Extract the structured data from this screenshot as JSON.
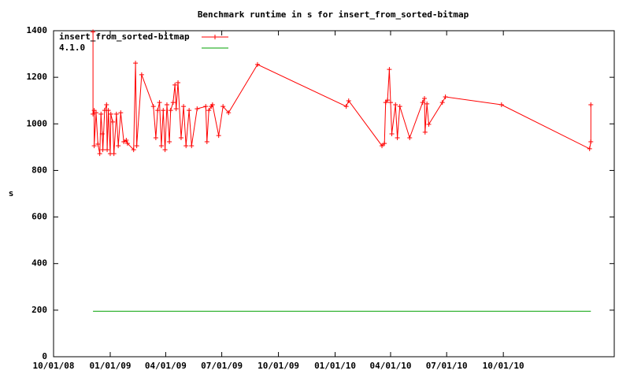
{
  "chart_data": {
    "type": "line",
    "title": "Benchmark runtime in s for insert_from_sorted-bitmap",
    "y_label": "s",
    "xlim": [
      "10/01/08",
      "03/30/11"
    ],
    "xticks": [
      "10/01/08",
      "01/01/09",
      "04/01/09",
      "07/01/09",
      "10/01/09",
      "01/01/10",
      "04/01/10",
      "07/01/10",
      "10/01/10"
    ],
    "ylim": [
      0,
      1400
    ],
    "yticks": [
      0,
      200,
      400,
      600,
      800,
      1000,
      1200,
      1400
    ],
    "legend": "top-left",
    "series": [
      {
        "name": "insert_from_sorted-bitmap",
        "color": "#ff0000",
        "marker": "plus",
        "x": [
          "12/04/08",
          "12/04/08",
          "12/06/08",
          "12/06/08",
          "12/09/08",
          "12/12/08",
          "12/15/08",
          "12/17/08",
          "12/19/08",
          "12/20/08",
          "12/23/08",
          "12/26/08",
          "12/27/08",
          "12/29/08",
          "01/01/09",
          "01/02/09",
          "01/05/09",
          "01/07/09",
          "01/11/09",
          "01/14/09",
          "01/18/09",
          "01/23/09",
          "01/27/09",
          "01/29/09",
          "02/08/09",
          "02/11/09",
          "02/13/09",
          "02/21/09",
          "03/12/09",
          "03/16/09",
          "03/19/09",
          "03/22/09",
          "03/25/09",
          "03/28/09",
          "03/31/09",
          "04/03/09",
          "04/07/09",
          "04/09/09",
          "04/13/09",
          "04/16/09",
          "04/18/09",
          "04/21/09",
          "04/26/09",
          "04/30/09",
          "05/04/09",
          "05/09/09",
          "05/13/09",
          "05/22/09",
          "06/05/09",
          "06/07/09",
          "06/10/09",
          "06/14/09",
          "06/16/09",
          "06/26/09",
          "07/03/09",
          "07/12/09",
          "08/28/09",
          "01/19/10",
          "01/23/10",
          "03/18/10",
          "03/22/10",
          "03/24/10",
          "03/27/10",
          "03/30/10",
          "04/01/10",
          "04/03/10",
          "04/09/10",
          "04/12/10",
          "04/16/10",
          "05/02/10",
          "05/23/10",
          "05/26/10",
          "05/27/10",
          "05/30/10",
          "06/02/10",
          "06/24/10",
          "06/29/10",
          "09/28/10",
          "02/18/11",
          "02/20/11",
          "02/20/11"
        ],
        "values": [
          1395,
          1042,
          1058,
          906,
          1048,
          913,
          872,
          1042,
          957,
          889,
          1058,
          1082,
          889,
          1058,
          872,
          1042,
          1008,
          872,
          1042,
          906,
          1048,
          923,
          930,
          916,
          889,
          1261,
          906,
          1211,
          1075,
          940,
          1058,
          1092,
          906,
          1058,
          889,
          1082,
          923,
          1058,
          1092,
          1167,
          1065,
          1177,
          940,
          1075,
          906,
          1058,
          906,
          1065,
          1075,
          923,
          1058,
          1075,
          1082,
          950,
          1075,
          1048,
          1255,
          1075,
          1099,
          906,
          916,
          1092,
          1102,
          1234,
          1092,
          957,
          1082,
          940,
          1075,
          940,
          1092,
          1109,
          964,
          1086,
          998,
          1092,
          1116,
          1082,
          893,
          923,
          1082
        ]
      },
      {
        "name": "4.1.0",
        "color": "#00a000",
        "x": [
          "12/04/08",
          "02/20/11"
        ],
        "values": [
          195,
          195
        ]
      }
    ]
  }
}
